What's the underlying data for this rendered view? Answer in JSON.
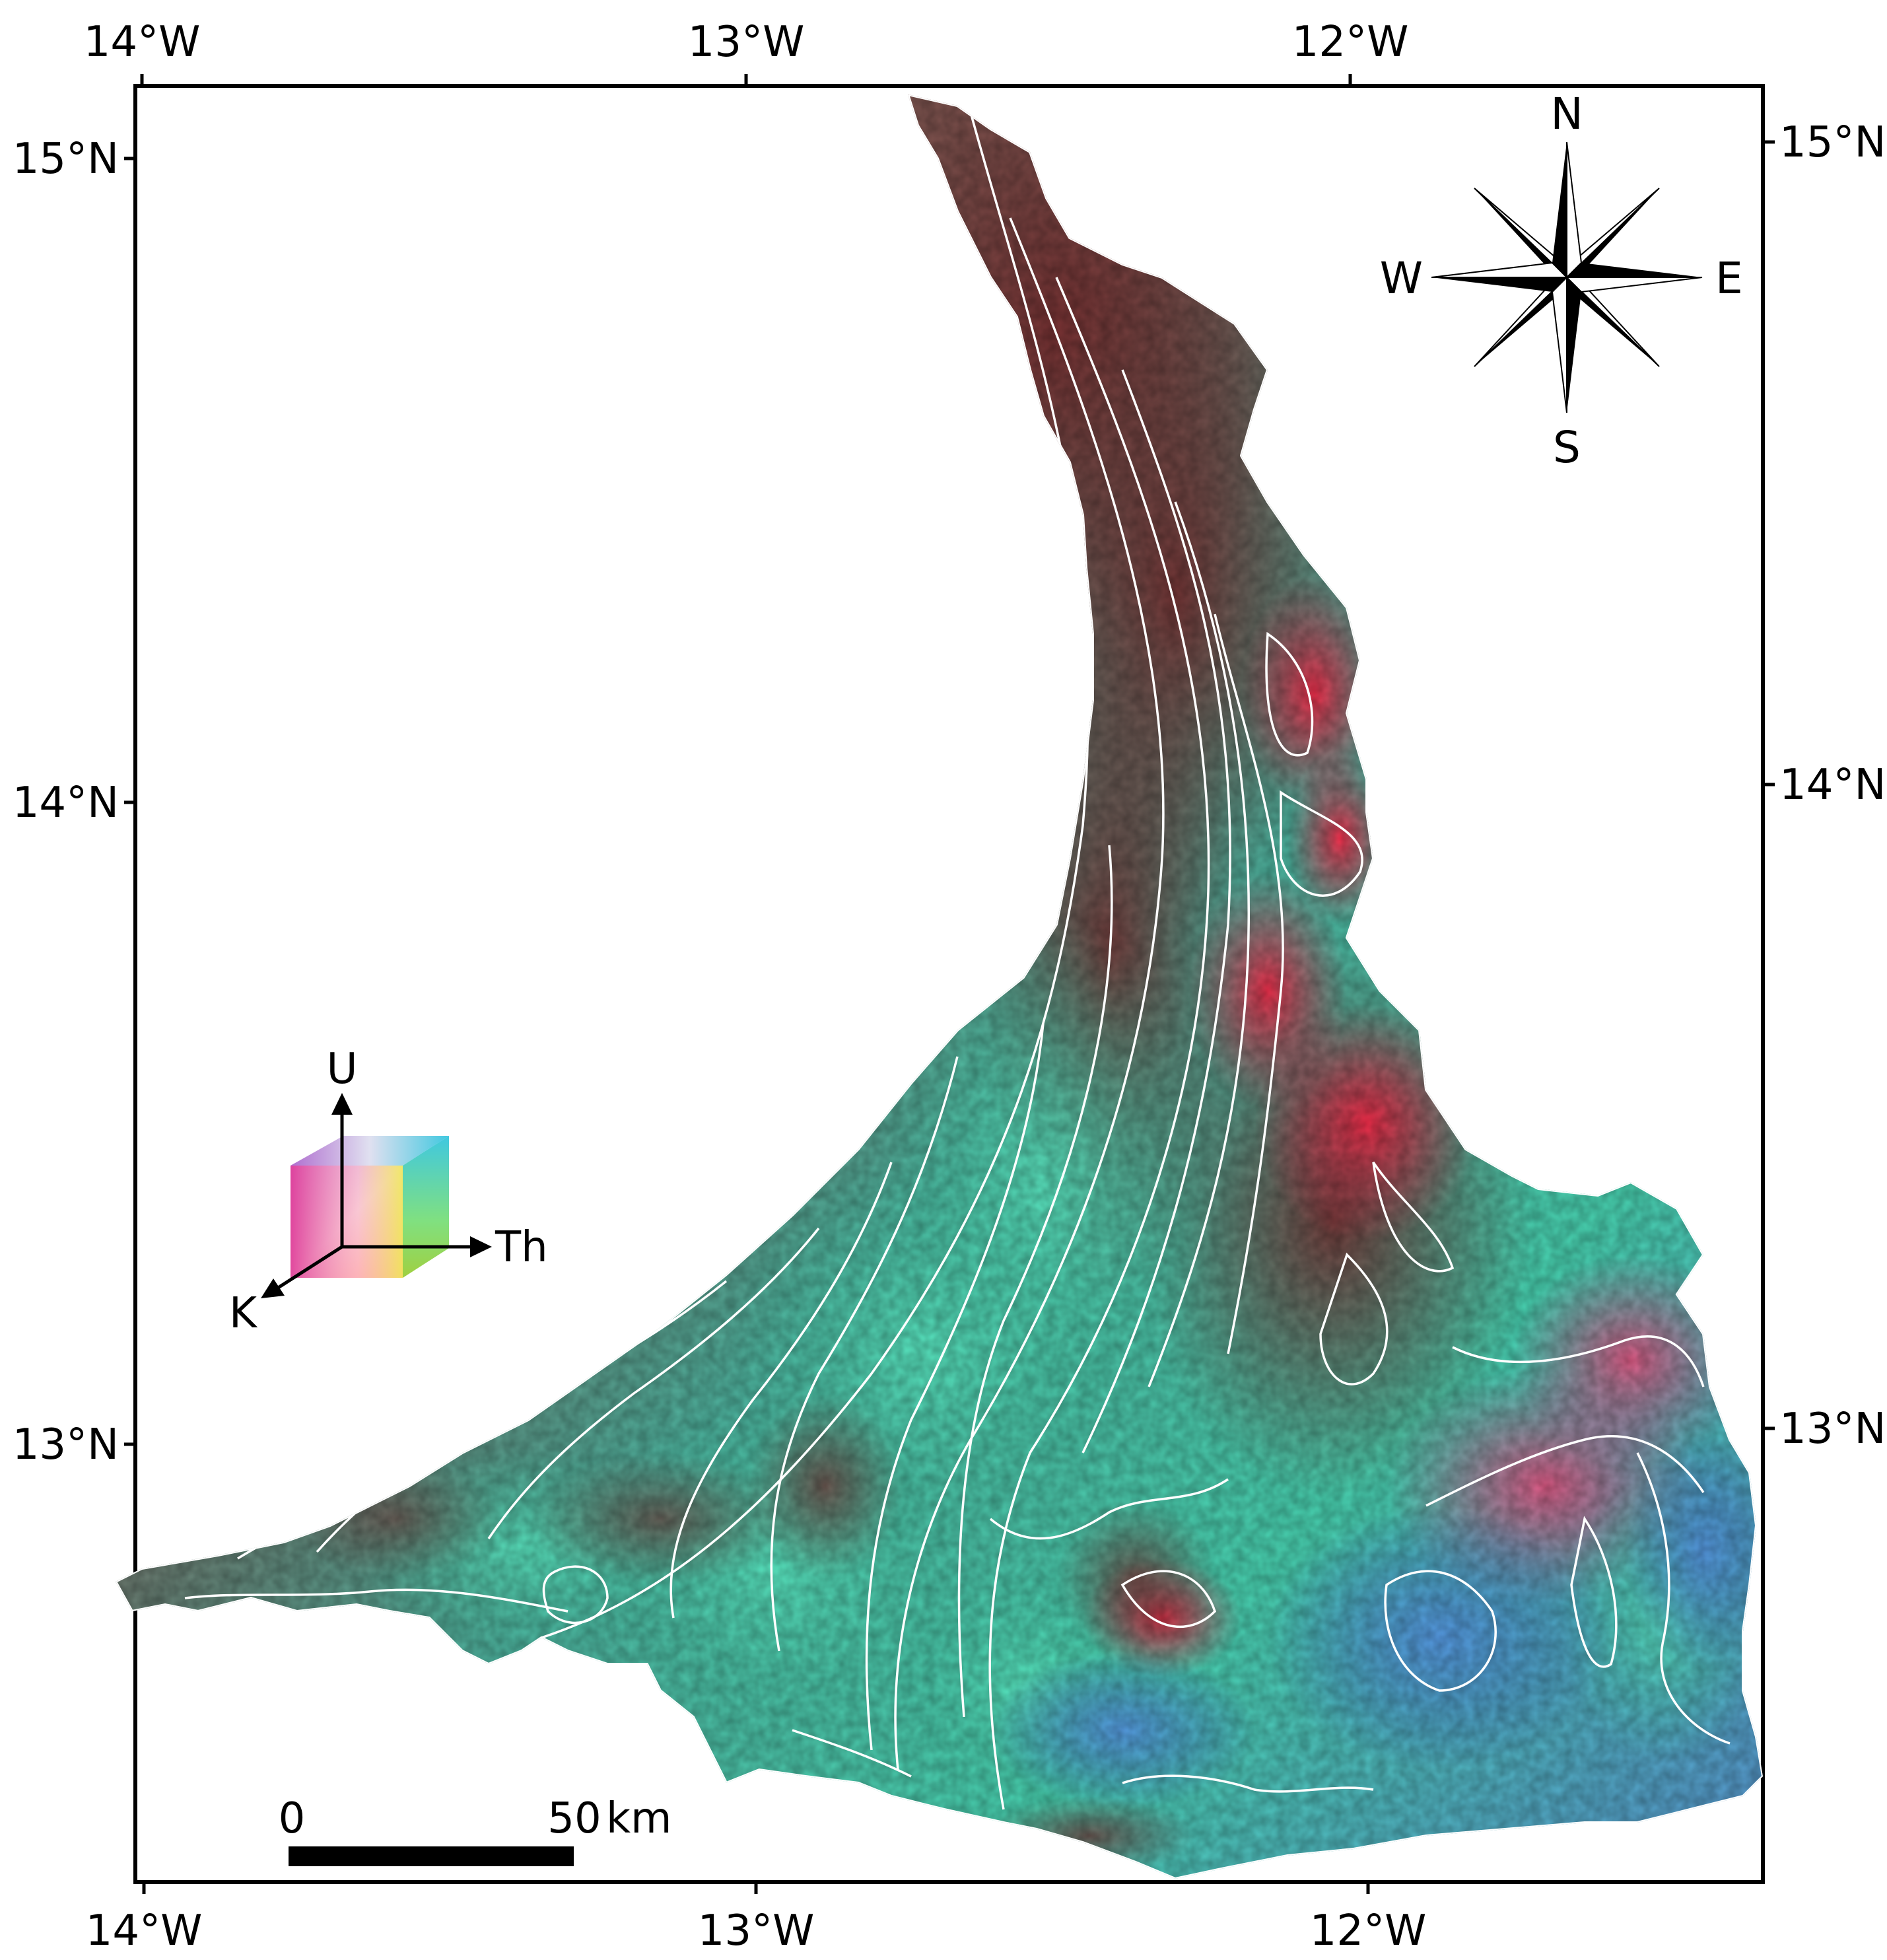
{
  "graticule": {
    "top": [
      "14°W",
      "13°W",
      "12°W"
    ],
    "bottom": [
      "14°W",
      "13°W",
      "12°W"
    ],
    "left": [
      "15°N",
      "14°N",
      "13°N"
    ],
    "right": [
      "15°N",
      "14°N",
      "13°N"
    ]
  },
  "north_arrow": {
    "n": "N",
    "s": "S",
    "e": "E",
    "w": "W"
  },
  "ternary_legend": {
    "u": "U",
    "th": "Th",
    "k": "K"
  },
  "scale_bar": {
    "start": "0",
    "end": "50",
    "unit": "km"
  },
  "colors": {
    "potassium": "#e8304a",
    "thorium": "#3ee0b4",
    "uranium": "#5b8ee8",
    "contacts": "#ffffff"
  }
}
